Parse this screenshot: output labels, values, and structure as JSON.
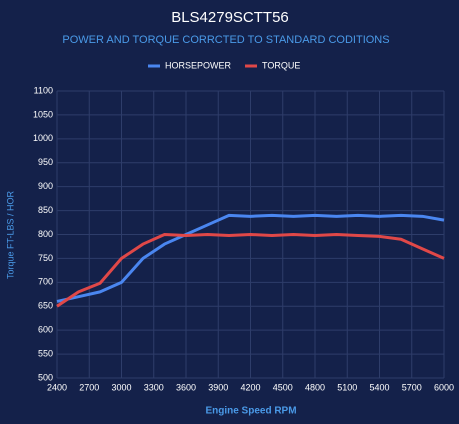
{
  "chart_data": {
    "type": "line",
    "title": "BLS4279SCTT56",
    "subtitle": "POWER AND TORQUE CORRCTED TO STANDARD CODITIONS",
    "x_label": "Engine Speed RPM",
    "y_label": "Torque FT-LBS / HOR",
    "x": [
      2400,
      2600,
      2800,
      3000,
      3200,
      3400,
      3600,
      3800,
      4000,
      4200,
      4400,
      4600,
      4800,
      5000,
      5200,
      5400,
      5600,
      5800,
      6000
    ],
    "series": [
      {
        "name": "HORSEPOWER",
        "color": "#4a86f0",
        "values": [
          660,
          670,
          680,
          700,
          750,
          780,
          800,
          820,
          840,
          838,
          840,
          838,
          840,
          838,
          840,
          838,
          840,
          838,
          830
        ]
      },
      {
        "name": "TORQUE",
        "color": "#e04848",
        "values": [
          650,
          680,
          698,
          750,
          780,
          800,
          798,
          800,
          798,
          800,
          798,
          800,
          798,
          800,
          798,
          796,
          790,
          770,
          750
        ]
      }
    ],
    "xlim": [
      2400,
      6000
    ],
    "xticks": [
      2400,
      2700,
      3000,
      3300,
      3600,
      3900,
      4200,
      4500,
      4800,
      5100,
      5400,
      5700,
      6000
    ],
    "ylim": [
      500,
      1100
    ],
    "yticks": [
      500,
      550,
      600,
      650,
      700,
      750,
      800,
      850,
      900,
      950,
      1000,
      1050,
      1100
    ],
    "grid": true
  }
}
